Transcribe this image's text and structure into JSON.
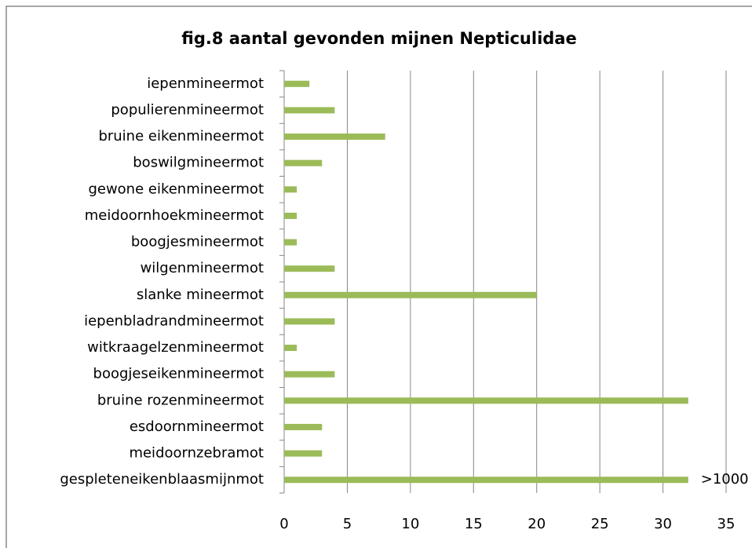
{
  "chart_data": {
    "type": "bar",
    "orientation": "horizontal",
    "title": "fig.8  aantal gevonden mijnen Nepticulidae",
    "categories": [
      "iepenmineermot",
      "populierenmineermot",
      "bruine eikenmineermot",
      "boswilgmineermot",
      "gewone eikenmineermot",
      "meidoornhoekmineermot",
      "boogjesmineermot",
      "wilgenmineermot",
      "slanke mineermot",
      "iepenbladrandmineermot",
      "witkraagelzenmineermot",
      "boogjeseikenmineermot",
      "bruine rozenmineermot",
      "esdoornmineermot",
      "meidoornzebramot",
      "gespleteneikenblaasmijnmot"
    ],
    "values": [
      2,
      4,
      8,
      3,
      1,
      1,
      1,
      4,
      20,
      4,
      1,
      4,
      32,
      3,
      3,
      32
    ],
    "annotation": ">1000",
    "color": "#9bbb59",
    "xlim": [
      0,
      35
    ],
    "xticks": [
      0,
      5,
      10,
      15,
      20,
      25,
      30,
      35
    ],
    "grid": true
  }
}
